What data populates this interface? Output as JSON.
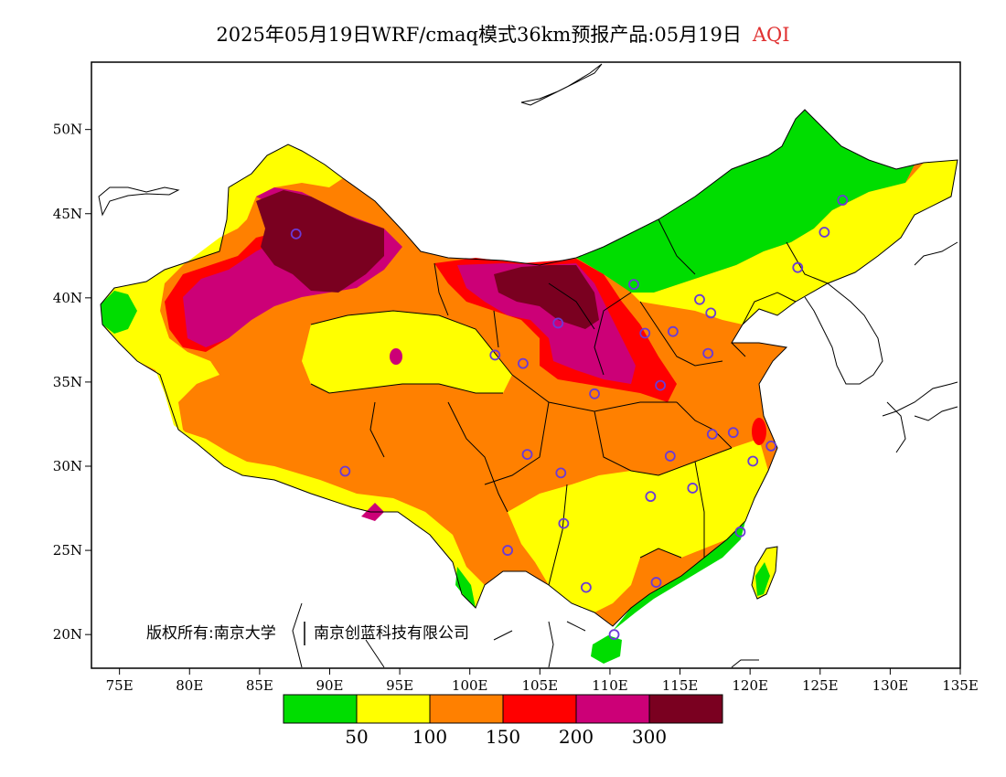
{
  "title": {
    "main": "2025年05月19日WRF/cmaq模式36km预报产品:05月19日",
    "variable": "AQI"
  },
  "axes": {
    "x_ticks": [
      "75E",
      "80E",
      "85E",
      "90E",
      "95E",
      "100E",
      "105E",
      "110E",
      "115E",
      "120E",
      "125E",
      "130E",
      "135E"
    ],
    "y_ticks": [
      "50N",
      "45N",
      "40N",
      "35N",
      "30N",
      "25N",
      "20N"
    ]
  },
  "colorbar": {
    "colors": [
      "#00dd00",
      "#ffff00",
      "#ff8000",
      "#ff0000",
      "#cc0077",
      "#7a0020"
    ],
    "labels": [
      "50",
      "100",
      "150",
      "200",
      "300"
    ]
  },
  "copyright": {
    "owner1": "版权所有:南京大学",
    "owner2": "南京创蓝科技有限公司"
  },
  "station_marker_color": "#6a3ad6",
  "map_data": {
    "lon_range": [
      73,
      135
    ],
    "lat_range": [
      18,
      54
    ],
    "stations": [
      [
        126.6,
        45.8
      ],
      [
        125.3,
        43.9
      ],
      [
        123.4,
        41.8
      ],
      [
        111.7,
        40.8
      ],
      [
        116.4,
        39.9
      ],
      [
        117.2,
        39.1
      ],
      [
        114.5,
        38.0
      ],
      [
        112.5,
        37.9
      ],
      [
        106.3,
        38.5
      ],
      [
        117.0,
        36.7
      ],
      [
        101.8,
        36.6
      ],
      [
        103.8,
        36.1
      ],
      [
        108.9,
        34.3
      ],
      [
        113.6,
        34.8
      ],
      [
        104.1,
        30.7
      ],
      [
        106.5,
        29.6
      ],
      [
        114.3,
        30.6
      ],
      [
        117.3,
        31.9
      ],
      [
        118.8,
        32.0
      ],
      [
        120.2,
        30.3
      ],
      [
        121.5,
        31.2
      ],
      [
        112.9,
        28.2
      ],
      [
        115.9,
        28.7
      ],
      [
        106.7,
        26.6
      ],
      [
        119.3,
        26.1
      ],
      [
        102.7,
        25.0
      ],
      [
        108.3,
        22.8
      ],
      [
        113.3,
        23.1
      ],
      [
        110.3,
        20.0
      ],
      [
        87.6,
        43.8
      ],
      [
        91.1,
        29.7
      ]
    ]
  }
}
